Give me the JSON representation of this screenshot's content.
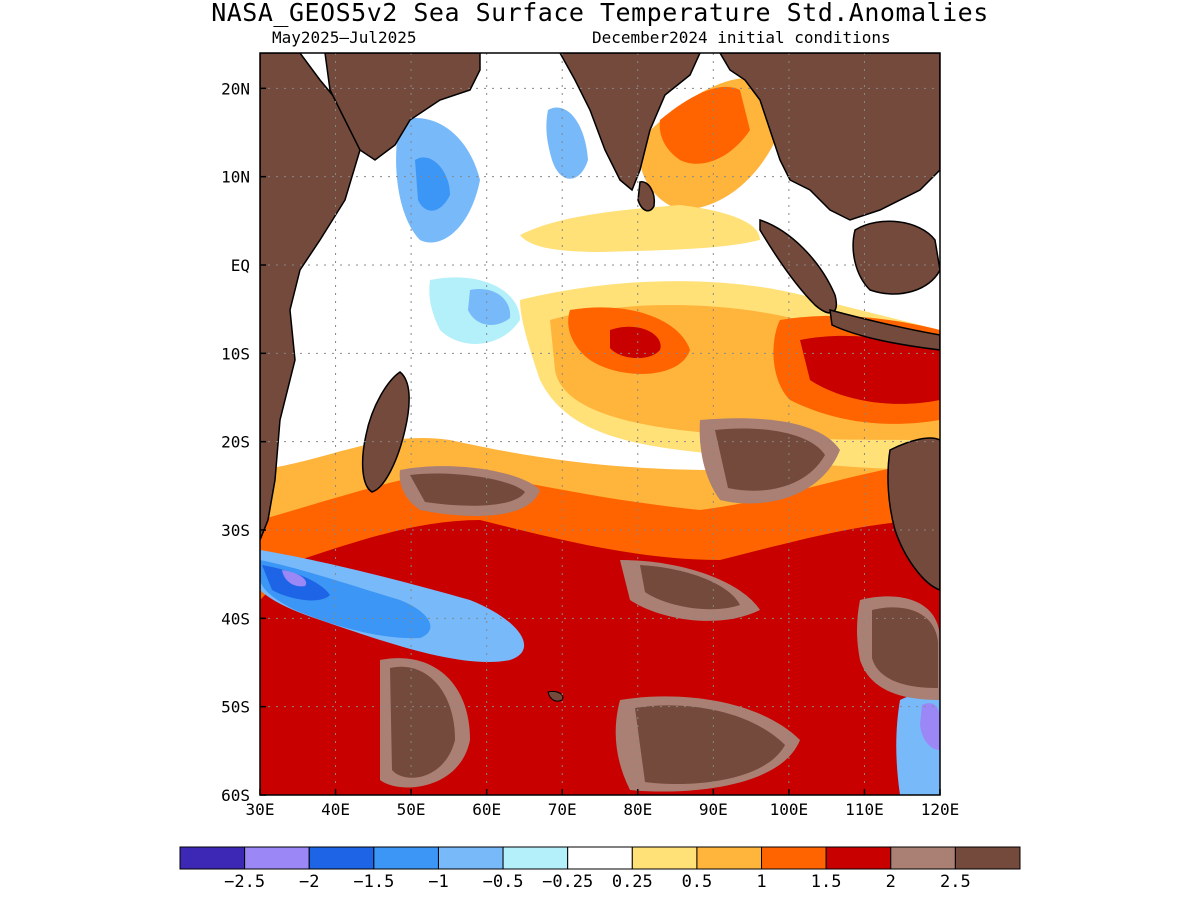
{
  "title": "NASA_GEOS5v2 Sea Surface Temperature Std.Anomalies",
  "subtitle_left": "May2025–Jul2025",
  "subtitle_right": "December2024 initial conditions",
  "map": {
    "lon_range": [
      30,
      120
    ],
    "lat_range": [
      -60,
      24
    ],
    "lon_ticks": [
      "30E",
      "40E",
      "50E",
      "60E",
      "70E",
      "80E",
      "90E",
      "100E",
      "110E",
      "120E"
    ],
    "lat_ticks": [
      "20N",
      "10N",
      "EQ",
      "10S",
      "20S",
      "30S",
      "40S",
      "50S",
      "60S"
    ],
    "land_color": "#734a3c",
    "grid": true
  },
  "colorbar": {
    "colors": [
      "#3c28b4",
      "#9b87f5",
      "#1e64e6",
      "#3c96f5",
      "#78b9fa",
      "#b4f0fa",
      "#ffffff",
      "#ffe178",
      "#ffb43c",
      "#ff6400",
      "#c80000",
      "#aa7f74",
      "#734a3c"
    ],
    "labels": [
      "−2.5",
      "−2",
      "−1.5",
      "−1",
      "−0.5",
      "−0.25",
      "0.25",
      "0.5",
      "1",
      "1.5",
      "2",
      "2.5"
    ]
  }
}
